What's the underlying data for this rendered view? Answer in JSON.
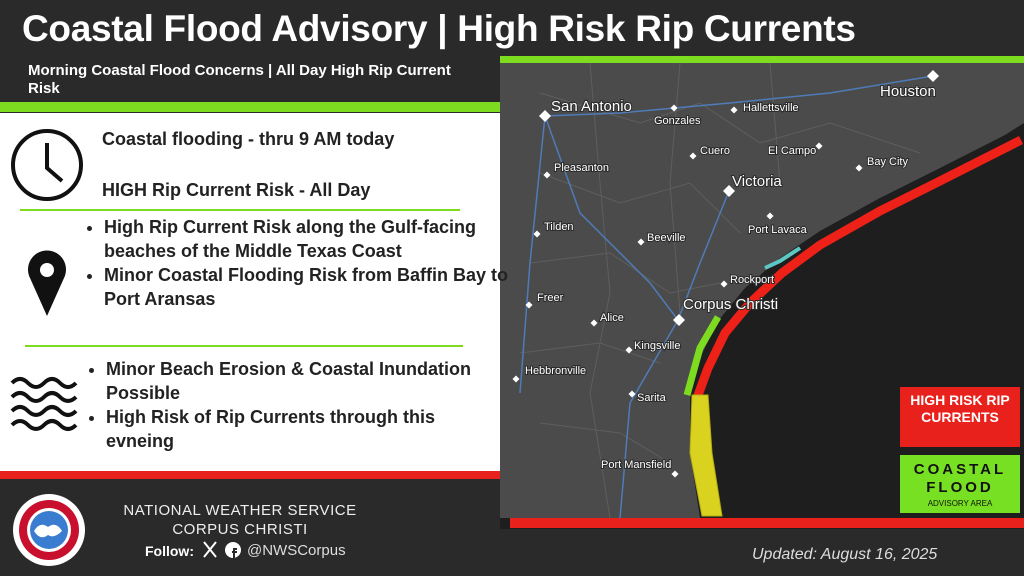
{
  "header": {
    "title": "Coastal Flood Advisory | High Risk Rip Currents",
    "subtitle": "Morning Coastal Flood Concerns | All Day High Rip Current Risk"
  },
  "panel": {
    "timing": [
      "Coastal flooding - thru 9 AM today",
      "HIGH Rip Current Risk - All Day"
    ],
    "location": [
      "High Rip Current Risk along the Gulf-facing beaches of the Middle Texas Coast",
      "Minor Coastal Flooding Risk from Baffin Bay to Port Aransas"
    ],
    "impacts": [
      "Minor Beach Erosion & Coastal Inundation Possible",
      "High Risk of Rip Currents through this evneing"
    ]
  },
  "map": {
    "cities": [
      "San Antonio",
      "Houston",
      "Gonzales",
      "Hallettsville",
      "Cuero",
      "El Campo",
      "Bay City",
      "Victoria",
      "Pleasanton",
      "Port Lavaca",
      "Tilden",
      "Beeville",
      "Rockport",
      "Corpus Christi",
      "Freer",
      "Alice",
      "Kingsville",
      "Hebbronville",
      "Sarita",
      "Port Mansfield"
    ]
  },
  "legend": {
    "rip": "HIGH RISK RIP CURRENTS",
    "flood": "COASTAL FLOOD",
    "flood_sub": "ADVISORY AREA"
  },
  "footer": {
    "office_line1": "NATIONAL WEATHER SERVICE",
    "office_line2": "CORPUS CHRISTI",
    "follow": "Follow:",
    "handle": "@NWSCorpus",
    "updated": "Updated: August 16, 2025"
  }
}
